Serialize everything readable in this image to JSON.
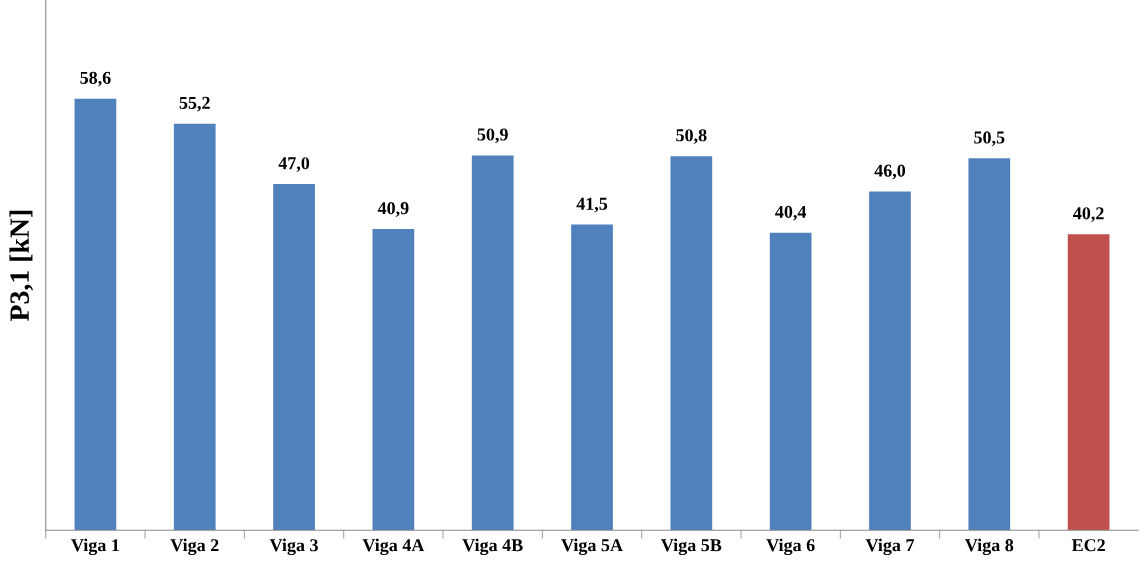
{
  "chart_data": {
    "type": "bar",
    "ylabel": "P3,1 [kN]",
    "categories": [
      "Viga 1",
      "Viga 2",
      "Viga 3",
      "Viga 4A",
      "Viga 4B",
      "Viga 5A",
      "Viga 5B",
      "Viga 6",
      "Viga 7",
      "Viga 8",
      "EC2"
    ],
    "values": [
      58.6,
      55.2,
      47.0,
      40.9,
      50.9,
      41.5,
      50.8,
      40.4,
      46.0,
      50.5,
      40.2
    ],
    "value_labels": [
      "58,6",
      "55,2",
      "47,0",
      "40,9",
      "50,9",
      "41,5",
      "50,8",
      "40,4",
      "46,0",
      "50,5",
      "40,2"
    ],
    "colors": [
      "#4f81bd",
      "#4f81bd",
      "#4f81bd",
      "#4f81bd",
      "#4f81bd",
      "#4f81bd",
      "#4f81bd",
      "#4f81bd",
      "#4f81bd",
      "#4f81bd",
      "#c0504d"
    ],
    "ylim": [
      0,
      72
    ],
    "tick_labels": "x",
    "grid": false,
    "legend": false
  }
}
